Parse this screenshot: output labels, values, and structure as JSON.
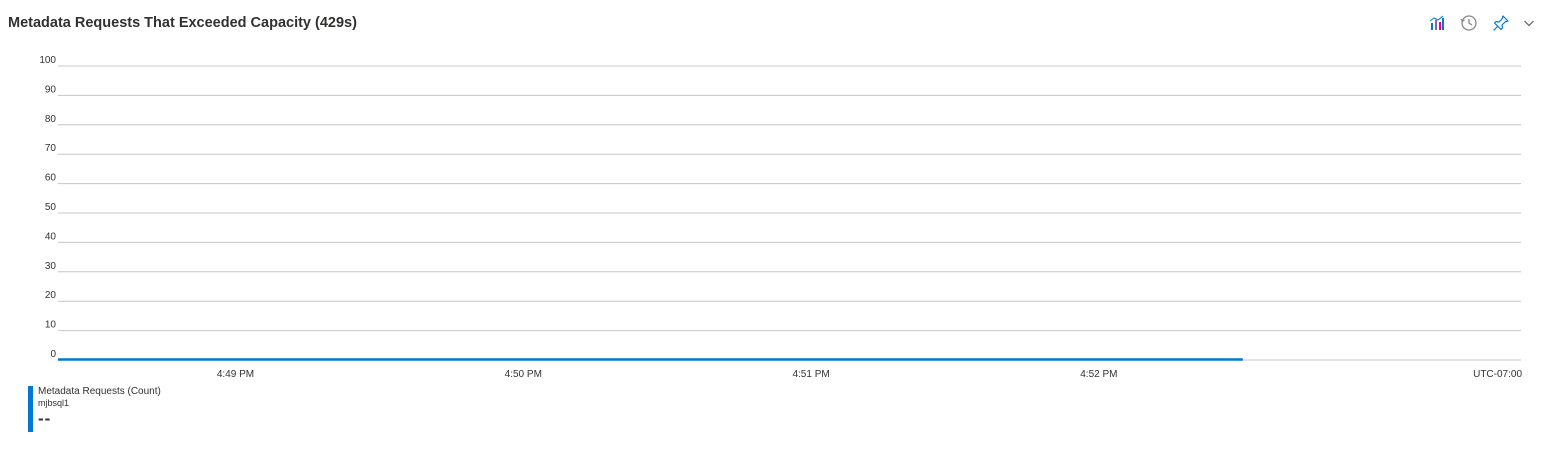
{
  "header": {
    "title": "Metadata Requests That Exceeded Capacity (429s)"
  },
  "toolbar": {
    "icons": [
      "chart-icon",
      "history-icon",
      "pin-icon",
      "chevron-down-icon"
    ]
  },
  "colors": {
    "series": "#0078d4",
    "grid": "#c8c6c4",
    "chart_icon_bars": [
      "#0078d4",
      "#8661c5",
      "#e3008c"
    ]
  },
  "chart_data": {
    "type": "line",
    "title": "Metadata Requests That Exceeded Capacity (429s)",
    "xlabel": "",
    "ylabel": "",
    "ylim": [
      0,
      100
    ],
    "yticks": [
      0,
      10,
      20,
      30,
      40,
      50,
      60,
      70,
      80,
      90,
      100
    ],
    "xlim": [
      "4:48:23 PM",
      "4:53:28 PM"
    ],
    "x_tick_labels": [
      "4:49 PM",
      "4:50 PM",
      "4:51 PM",
      "4:52 PM"
    ],
    "timezone_label": "UTC-07:00",
    "grid": true,
    "legend_position": "bottom-left",
    "series": [
      {
        "name": "Metadata Requests (Count)",
        "resource": "mjbsql1",
        "summary_value": "--",
        "color": "#0078d4",
        "points": [
          {
            "x": "4:48:23 PM",
            "y": 0
          },
          {
            "x": "4:52:30 PM",
            "y": 0
          }
        ]
      }
    ]
  }
}
